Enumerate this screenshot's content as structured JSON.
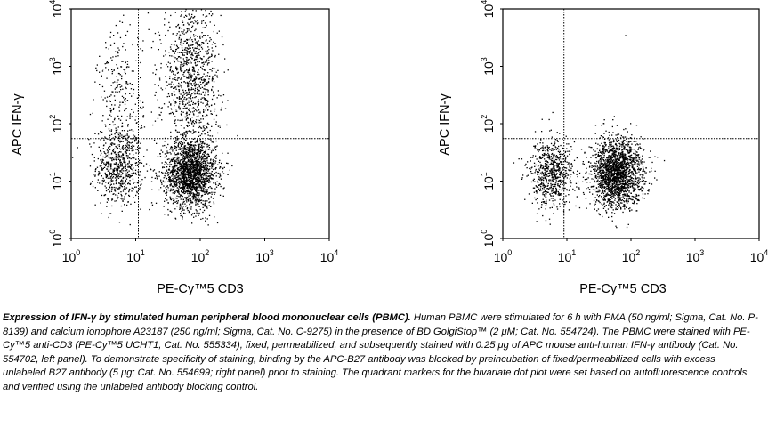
{
  "chart_data": [
    {
      "type": "scatter",
      "panel": "left",
      "xlabel": "PE-Cy™5 CD3",
      "ylabel": "APC IFN-γ",
      "x_scale": "log",
      "y_scale": "log",
      "xlim": [
        1,
        10000
      ],
      "ylim": [
        1,
        10000
      ],
      "x_ticks": [
        "10",
        "10",
        "10",
        "10",
        "10"
      ],
      "x_tick_exp": [
        "0",
        "1",
        "2",
        "3",
        "4"
      ],
      "y_ticks": [
        "10",
        "10",
        "10",
        "10",
        "10"
      ],
      "y_tick_exp": [
        "0",
        "1",
        "2",
        "3",
        "4"
      ],
      "quadrant_markers": {
        "x": 11,
        "y": 55
      },
      "populations": [
        {
          "x_center": 5.5,
          "y_center": 18,
          "x_spread_log": 0.18,
          "y_spread_log": 0.35,
          "count": 650
        },
        {
          "x_center": 70,
          "y_center": 14,
          "x_spread_log": 0.2,
          "y_spread_log": 0.3,
          "count": 1900
        },
        {
          "x_center": 70,
          "y_center": 600,
          "x_spread_log": 0.22,
          "y_spread_log": 0.7,
          "count": 1100
        },
        {
          "x_center": 5.5,
          "y_center": 300,
          "x_spread_log": 0.18,
          "y_spread_log": 0.6,
          "count": 260
        }
      ]
    },
    {
      "type": "scatter",
      "panel": "right",
      "xlabel": "PE-Cy™5 CD3",
      "ylabel": "APC IFN-γ",
      "x_scale": "log",
      "y_scale": "log",
      "xlim": [
        1,
        10000
      ],
      "ylim": [
        1,
        10000
      ],
      "x_ticks": [
        "10",
        "10",
        "10",
        "10",
        "10"
      ],
      "x_tick_exp": [
        "0",
        "1",
        "2",
        "3",
        "4"
      ],
      "y_ticks": [
        "10",
        "10",
        "10",
        "10",
        "10"
      ],
      "y_tick_exp": [
        "0",
        "1",
        "2",
        "3",
        "4"
      ],
      "quadrant_markers": {
        "x": 9,
        "y": 55
      },
      "populations": [
        {
          "x_center": 5.5,
          "y_center": 14,
          "x_spread_log": 0.18,
          "y_spread_log": 0.3,
          "count": 700
        },
        {
          "x_center": 60,
          "y_center": 14,
          "x_spread_log": 0.2,
          "y_spread_log": 0.3,
          "count": 2000
        },
        {
          "x_center": 80,
          "y_center": 3500,
          "x_spread_log": 0.01,
          "y_spread_log": 0.01,
          "count": 1
        }
      ]
    }
  ],
  "caption": {
    "bold": "Expression of IFN-γ by stimulated human peripheral blood mononuclear cells (PBMC).",
    "text": " Human PBMC were stimulated for 6 h with PMA (50 ng/ml; Sigma, Cat. No. P-8139) and calcium ionophore A23187 (250 ng/ml; Sigma, Cat. No. C-9275) in the presence of BD GolgiStop™ (2 μM; Cat. No. 554724). The PBMC were stained with PE-Cy™5 anti-CD3 (PE-Cy™5 UCHT1, Cat. No. 555334), fixed, permeabilized, and subsequently stained with 0.25 μg of APC mouse anti-human IFN-γ antibody (Cat. No. 554702, left panel). To demonstrate specificity of staining, binding by the APC-B27 antibody was blocked by preincubation of fixed/permeabilized cells with excess unlabeled B27 antibody (5 μg; Cat. No. 554699; right panel) prior to staining. The quadrant markers for the bivariate dot plot were set based on autofluorescence controls and verified using the unlabeled antibody blocking control."
  }
}
